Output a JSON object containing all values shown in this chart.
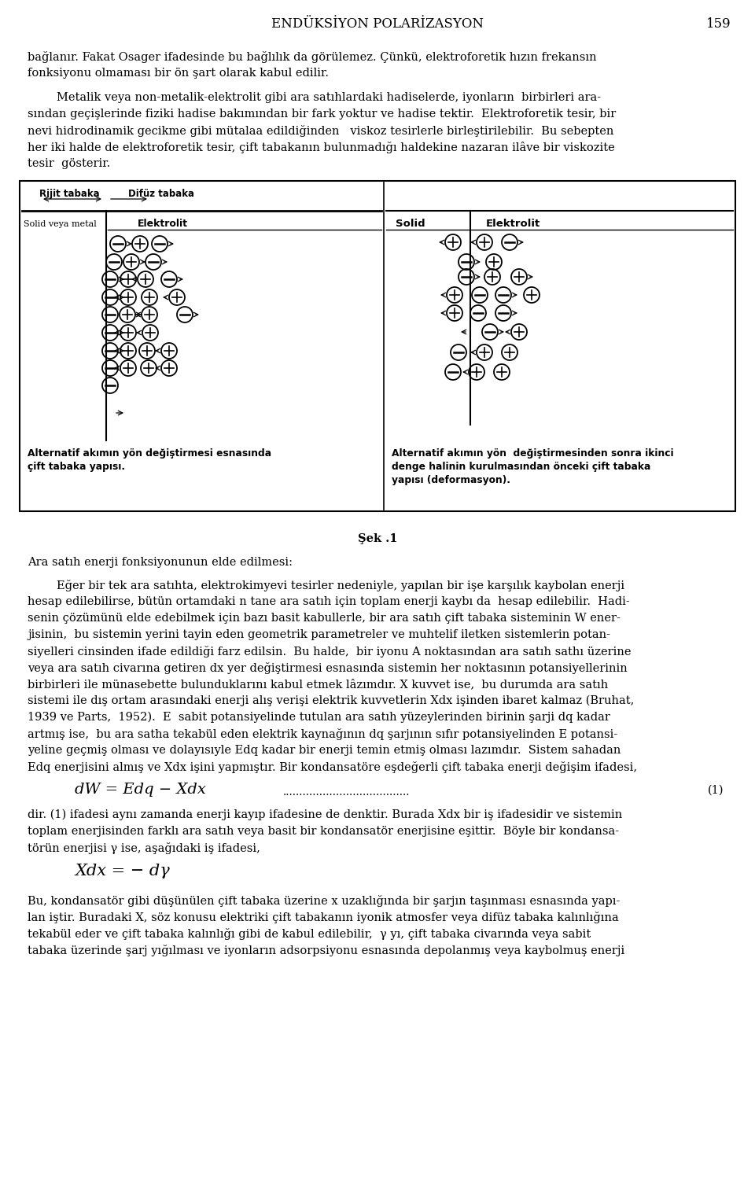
{
  "page_title": "ENDÜKSİYON POLARİZASYON",
  "page_number": "159",
  "bg_color": "#ffffff",
  "paragraphs_top": [
    "bağlanır. Fakat Osager ifadesinde bu bağlılık da görülemez. Çünkü, elektroforetik hızın frekansın",
    "fonksiyonu olmaması bir ön şart olarak kabul edilir.",
    "",
    "        Metalik veya non-metalik-elektrolit gibi ara satıhlardaki hadiselerde, iyonların  birbirleri ara-",
    "sından geçişlerinde fiziki hadise bakımından bir fark yoktur ve hadise tektir.  Elektroforetik tesir, bir",
    "nevi hidrodinamik gecikme gibi mütalaa edildiğinden   viskoz tesirlerle birleştirilebilir.  Bu sebepten",
    "her iki halde de elektroforetik tesir, çift tabakanın bulunmadığı haldekine nazaran ilâve bir viskozite",
    "tesir  gösterir."
  ],
  "left_label1": "Rijit tabaka",
  "left_label2": "Difüz tabaka",
  "left_label3": "Solid veya metal",
  "left_label4": "Elektrolit",
  "right_label1": "Solid",
  "right_label2": "Elektrolit",
  "cap_left_1": "Alternatif akımın yön değiştirmesi esnasında",
  "cap_left_2": "çift tabaka yapısı.",
  "cap_right_1": "Alternatif akımın yön  değiştirmesinden sonra ikinci",
  "cap_right_2": "denge halinin kurulmasından önceki çift tabaka",
  "cap_right_3": "yapısı (deformasyon).",
  "fig_number": "Şek .1",
  "section_title": "Ara satıh enerji fonksiyonunun elde edilmesi:",
  "body_paragraphs": [
    "        Eğer bir tek ara satıhta, elektrokimyevi tesirler nedeniyle, yapılan bir işe karşılık kaybolan enerji",
    "hesap edilebilirse, bütün ortamdaki n tane ara satıh için toplam enerji kaybı da  hesap edilebilir.  Hadi-",
    "senin çözümünü elde edebilmek için bazı basit kabullerle, bir ara satıh çift tabaka sisteminin W ener-",
    "jisinin,  bu sistemin yerini tayin eden geometrik parametreler ve muhtelif iletken sistemlerin potan-",
    "siyelleri cinsinden ifade edildiği farz edilsin.  Bu halde,  bir iyonu A noktasından ara satıh sathı üzerine",
    "veya ara satıh civarına getiren dx yer değiştirmesi esnasında sistemin her noktasının potansiyellerinin",
    "birbirleri ile münasebette bulunduklarını kabul etmek lâzımdır. X kuvvet ise,  bu durumda ara satıh",
    "sistemi ile dış ortam arasındaki enerji alış verişi elektrik kuvvetlerin Xdx işinden ibaret kalmaz (Bruhat,",
    "1939 ve Parts,  1952).  E  sabit potansiyelinde tutulan ara satıh yüzeylerinden birinin şarji dq kadar",
    "artmış ise,  bu ara satha tekabül eden elektrik kaynağının dq şarjının sıfır potansiyelinden E potansi-",
    "yeline geçmiş olması ve dolayısıyle Edq kadar bir enerji temin etmiş olması lazımdır.  Sistem sahadan",
    "Edq enerjisini almış ve Xdx işini yapmıştır. Bir kondansatöre eşdeğerli çift tabaka enerji değişim ifadesi,"
  ],
  "formula1_num": "(1)",
  "after_formula1": [
    "dir. (1) ifadesi aynı zamanda enerji kayıp ifadesine de denktir. Burada Xdx bir iş ifadesidir ve sistemin",
    "toplam enerjisinden farklı ara satıh veya basit bir kondansatör enerjisine eşittir.  Böyle bir kondansa-",
    "törün enerjisi γ ise, aşağıdaki iş ifadesi,"
  ],
  "after_formula2": [
    "Bu, kondansatör gibi düşünülen çift tabaka üzerine x uzaklığında bir şarjın taşınması esnasında yapı-",
    "lan iştir. Buradaki X, söz konusu elektriki çift tabakanın iyonik atmosfer veya difüz tabaka kalınlığına",
    "tekabül eder ve çift tabaka kalınlığı gibi de kabul edilebilir,  γ yı, çift tabaka civarında veya sabit",
    "tabaka üzerinde şarj yığılması ve iyonların adsorpsiyonu esnasında depolanmış veya kaybolmuş enerji"
  ]
}
